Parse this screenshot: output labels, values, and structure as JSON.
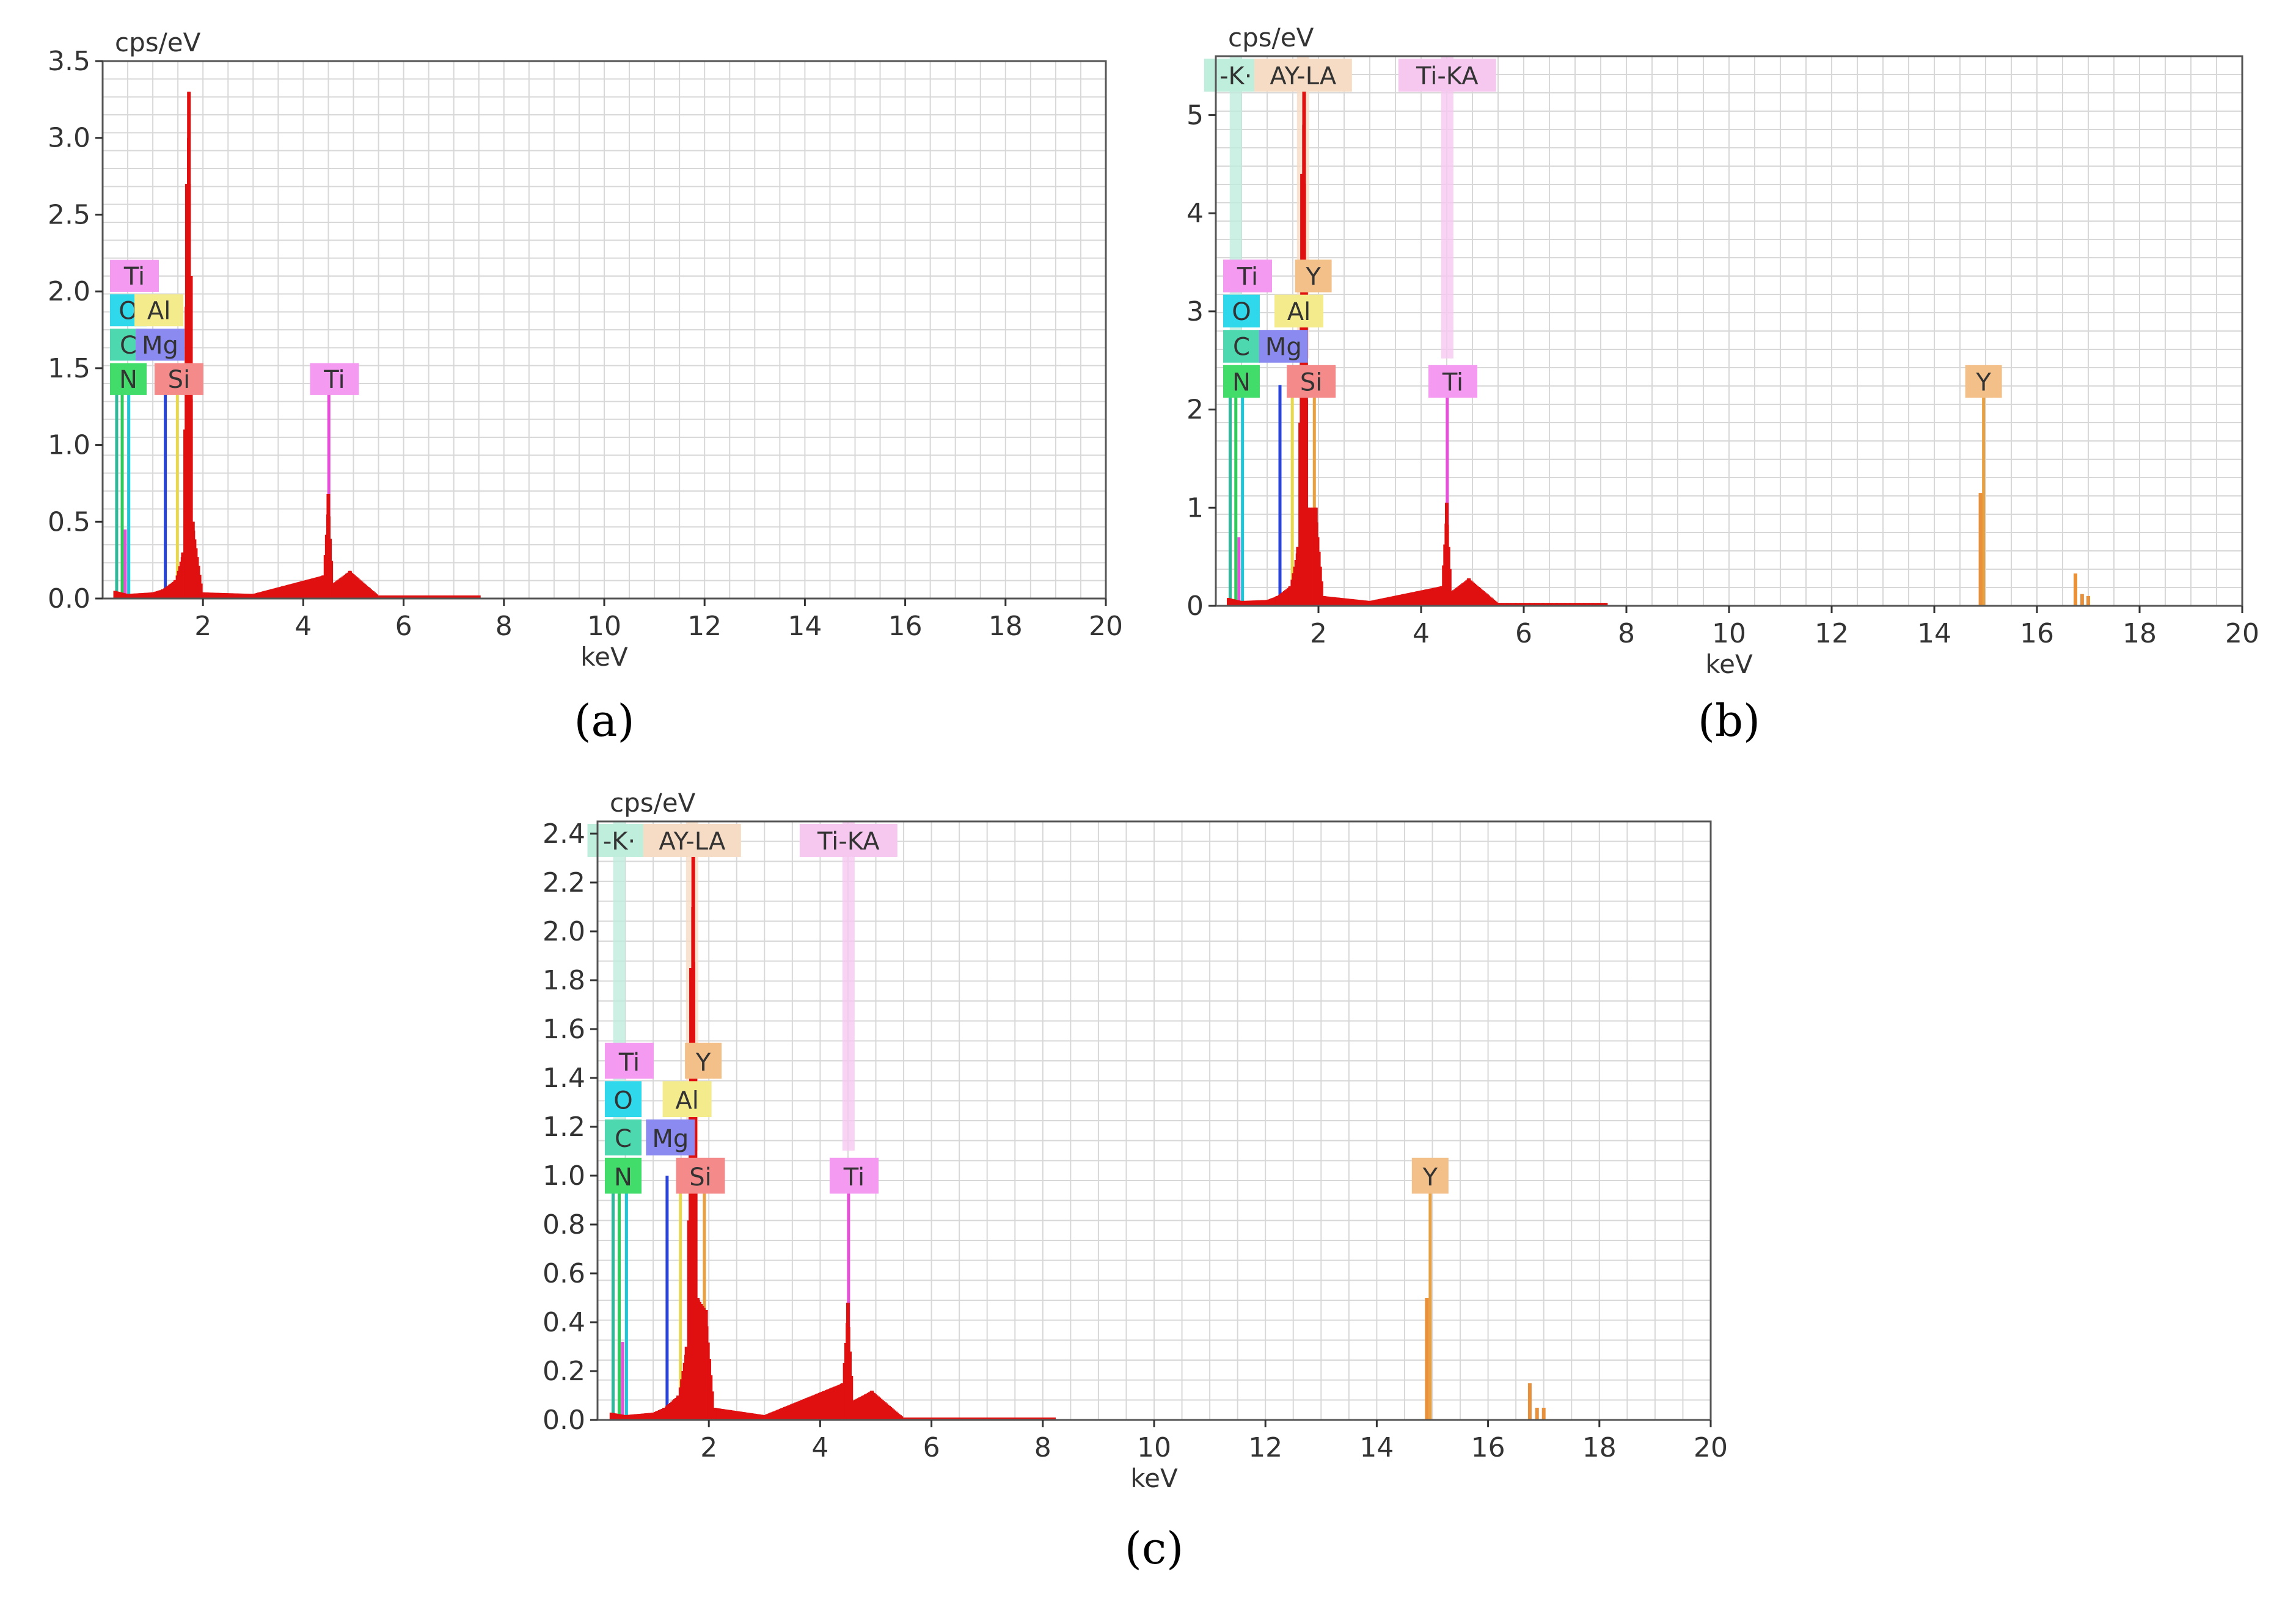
{
  "figure": {
    "panels": [
      "a",
      "b",
      "c"
    ]
  },
  "chart_data": [
    {
      "panel": "a",
      "panel_label": "(a)",
      "type": "bar",
      "title": "",
      "xlabel": "keV",
      "ylabel": "cps/eV",
      "xlim": [
        0,
        20
      ],
      "ylim": [
        0,
        3.5
      ],
      "xticks": [
        2,
        4,
        6,
        8,
        10,
        12,
        14,
        16,
        18,
        20
      ],
      "xtick_labels": [
        "2",
        "4",
        "6",
        "8",
        "10",
        "12",
        "14",
        "16",
        "18",
        "20"
      ],
      "yticks": [
        0,
        0.5,
        1.0,
        1.5,
        2.0,
        2.5,
        3.0,
        3.5
      ],
      "ytick_labels": [
        "0.0",
        "0.5",
        "1.0",
        "1.5",
        "2.0",
        "2.5",
        "3.0",
        "3.5"
      ],
      "element_lines": [
        {
          "element": "N",
          "energy": 0.39,
          "height": 1.42,
          "color": "#2ecc5a"
        },
        {
          "element": "C",
          "energy": 0.28,
          "height": 1.42,
          "color": "#2fb89a"
        },
        {
          "element": "O",
          "energy": 0.52,
          "height": 1.42,
          "color": "#1fc6d8"
        },
        {
          "element": "Ti",
          "energy": 0.45,
          "height": 0.45,
          "color": "#e84fd8"
        },
        {
          "element": "Mg",
          "energy": 1.25,
          "height": 1.42,
          "color": "#2a44d8"
        },
        {
          "element": "Al",
          "energy": 1.49,
          "height": 1.42,
          "color": "#e8d850"
        },
        {
          "element": "Si",
          "energy": 1.74,
          "height": 1.42,
          "color": "#e84040"
        },
        {
          "element": "Ti",
          "energy": 4.51,
          "height": 1.42,
          "color": "#e84fd8"
        }
      ],
      "spectrum": [
        {
          "energy": 0.25,
          "value": 0.05
        },
        {
          "energy": 0.5,
          "value": 0.03
        },
        {
          "energy": 1.0,
          "value": 0.04
        },
        {
          "energy": 1.2,
          "value": 0.06
        },
        {
          "energy": 1.45,
          "value": 0.12
        },
        {
          "energy": 1.6,
          "value": 0.3
        },
        {
          "energy": 1.68,
          "value": 2.7
        },
        {
          "energy": 1.72,
          "value": 3.3
        },
        {
          "energy": 1.76,
          "value": 2.1
        },
        {
          "energy": 1.8,
          "value": 0.5
        },
        {
          "energy": 2.0,
          "value": 0.04
        },
        {
          "energy": 3.0,
          "value": 0.03
        },
        {
          "energy": 4.4,
          "value": 0.15
        },
        {
          "energy": 4.5,
          "value": 0.68
        },
        {
          "energy": 4.6,
          "value": 0.1
        },
        {
          "energy": 4.93,
          "value": 0.18
        },
        {
          "energy": 5.5,
          "value": 0.02
        },
        {
          "energy": 7.5,
          "value": 0.02
        }
      ],
      "label_boxes": [
        {
          "text": "Ti",
          "row": 0,
          "col": 0,
          "color": "#f49af0"
        },
        {
          "text": "O",
          "row": 1,
          "col": 0,
          "color": "#30d8ec"
        },
        {
          "text": "Al",
          "row": 1,
          "col": 1,
          "color": "#f4ec8c"
        },
        {
          "text": "C",
          "row": 2,
          "col": 0,
          "color": "#4ed8b0"
        },
        {
          "text": "Mg",
          "row": 2,
          "col": 0.7,
          "color": "#8a8af0"
        },
        {
          "text": "N",
          "row": 3,
          "col": 0,
          "color": "#42dc6a"
        },
        {
          "text": "Si",
          "row": 3,
          "col": 1.4,
          "color": "#f48a8a"
        },
        {
          "text": "Ti",
          "row": 3,
          "col": 4.5,
          "color": "#f49af0"
        }
      ],
      "top_labels": []
    },
    {
      "panel": "b",
      "panel_label": "(b)",
      "type": "bar",
      "title": "",
      "xlabel": "keV",
      "ylabel": "cps/eV",
      "xlim": [
        0,
        20
      ],
      "ylim": [
        0,
        5.6
      ],
      "xticks": [
        2,
        4,
        6,
        8,
        10,
        12,
        14,
        16,
        18,
        20
      ],
      "xtick_labels": [
        "2",
        "4",
        "6",
        "8",
        "10",
        "12",
        "14",
        "16",
        "18",
        "20"
      ],
      "yticks": [
        0,
        1,
        2,
        3,
        4,
        5
      ],
      "ytick_labels": [
        "0",
        "1",
        "2",
        "3",
        "4",
        "5"
      ],
      "element_lines": [
        {
          "element": "N",
          "energy": 0.39,
          "height": 2.25,
          "color": "#2ecc5a"
        },
        {
          "element": "C",
          "energy": 0.28,
          "height": 2.25,
          "color": "#2fb89a"
        },
        {
          "element": "O",
          "energy": 0.52,
          "height": 2.25,
          "color": "#1fc6d8"
        },
        {
          "element": "Ti",
          "energy": 0.45,
          "height": 0.7,
          "color": "#e84fd8"
        },
        {
          "element": "Mg",
          "energy": 1.25,
          "height": 2.25,
          "color": "#2a44d8"
        },
        {
          "element": "Al",
          "energy": 1.49,
          "height": 2.25,
          "color": "#e8d850"
        },
        {
          "element": "Si",
          "energy": 1.74,
          "height": 2.25,
          "color": "#e84040"
        },
        {
          "element": "Y",
          "energy": 1.92,
          "height": 2.25,
          "color": "#e8a040"
        },
        {
          "element": "Ti",
          "energy": 4.51,
          "height": 2.25,
          "color": "#e84fd8"
        },
        {
          "element": "Y",
          "energy": 14.96,
          "height": 2.25,
          "color": "#e8a040"
        }
      ],
      "spectrum": [
        {
          "energy": 0.25,
          "value": 0.08
        },
        {
          "energy": 0.5,
          "value": 0.05
        },
        {
          "energy": 1.0,
          "value": 0.06
        },
        {
          "energy": 1.2,
          "value": 0.1
        },
        {
          "energy": 1.45,
          "value": 0.2
        },
        {
          "energy": 1.6,
          "value": 0.6
        },
        {
          "energy": 1.68,
          "value": 4.4
        },
        {
          "energy": 1.72,
          "value": 5.4
        },
        {
          "energy": 1.76,
          "value": 3.2
        },
        {
          "energy": 1.8,
          "value": 1.0
        },
        {
          "energy": 1.95,
          "value": 1.0
        },
        {
          "energy": 2.1,
          "value": 0.1
        },
        {
          "energy": 3.0,
          "value": 0.05
        },
        {
          "energy": 4.4,
          "value": 0.2
        },
        {
          "energy": 4.5,
          "value": 1.05
        },
        {
          "energy": 4.6,
          "value": 0.15
        },
        {
          "energy": 4.93,
          "value": 0.28
        },
        {
          "energy": 5.5,
          "value": 0.03
        },
        {
          "energy": 7.6,
          "value": 0.03
        }
      ],
      "extra_orange_lines": [
        {
          "energy": 14.9,
          "value": 1.15
        },
        {
          "energy": 16.75,
          "value": 0.33
        },
        {
          "energy": 16.88,
          "value": 0.12
        },
        {
          "energy": 17.0,
          "value": 0.1
        }
      ],
      "label_boxes": [
        {
          "text": "Ti",
          "row": 0,
          "col": 0,
          "color": "#f49af0"
        },
        {
          "text": "Y",
          "row": 0,
          "col": 1.9,
          "color": "#f4c08a"
        },
        {
          "text": "O",
          "row": 1,
          "col": 0,
          "color": "#30d8ec"
        },
        {
          "text": "Al",
          "row": 1,
          "col": 1.5,
          "color": "#f4ec8c"
        },
        {
          "text": "C",
          "row": 2,
          "col": 0,
          "color": "#4ed8b0"
        },
        {
          "text": "Mg",
          "row": 2,
          "col": 1.2,
          "color": "#8a8af0"
        },
        {
          "text": "N",
          "row": 3,
          "col": 0,
          "color": "#42dc6a"
        },
        {
          "text": "Si",
          "row": 3,
          "col": 1.74,
          "color": "#f48a8a"
        },
        {
          "text": "Ti",
          "row": 3,
          "col": 4.5,
          "color": "#f49af0"
        },
        {
          "text": "Y",
          "row": 3,
          "col": 14.96,
          "color": "#f4c08a"
        }
      ],
      "top_labels": [
        {
          "text": "-K·",
          "energy": 0.39,
          "color": "#bfeedd"
        },
        {
          "text": "AY-LA",
          "energy": 1.7,
          "color": "#f6dcc4"
        },
        {
          "text": "Ti-KA",
          "energy": 4.51,
          "color": "#f6c8f0"
        }
      ]
    },
    {
      "panel": "c",
      "panel_label": "(c)",
      "type": "bar",
      "title": "",
      "xlabel": "keV",
      "ylabel": "cps/eV",
      "xlim": [
        0,
        20
      ],
      "ylim": [
        0,
        2.45
      ],
      "xticks": [
        2,
        4,
        6,
        8,
        10,
        12,
        14,
        16,
        18,
        20
      ],
      "xtick_labels": [
        "2",
        "4",
        "6",
        "8",
        "10",
        "12",
        "14",
        "16",
        "18",
        "20"
      ],
      "yticks": [
        0,
        0.2,
        0.4,
        0.6,
        0.8,
        1.0,
        1.2,
        1.4,
        1.6,
        1.8,
        2.0,
        2.2,
        2.4
      ],
      "ytick_labels": [
        "0.0",
        "0.2",
        "0.4",
        "0.6",
        "0.8",
        "1.0",
        "1.2",
        "1.4",
        "1.6",
        "1.8",
        "2.0",
        "2.2",
        "2.4"
      ],
      "element_lines": [
        {
          "element": "N",
          "energy": 0.39,
          "height": 1.0,
          "color": "#2ecc5a"
        },
        {
          "element": "C",
          "energy": 0.28,
          "height": 1.0,
          "color": "#2fb89a"
        },
        {
          "element": "O",
          "energy": 0.52,
          "height": 1.0,
          "color": "#1fc6d8"
        },
        {
          "element": "Ti",
          "energy": 0.45,
          "height": 0.32,
          "color": "#e84fd8"
        },
        {
          "element": "Mg",
          "energy": 1.25,
          "height": 1.0,
          "color": "#2a44d8"
        },
        {
          "element": "Al",
          "energy": 1.49,
          "height": 1.0,
          "color": "#e8d850"
        },
        {
          "element": "Si",
          "energy": 1.74,
          "height": 1.0,
          "color": "#e84040"
        },
        {
          "element": "Y",
          "energy": 1.92,
          "height": 1.0,
          "color": "#e8a040"
        },
        {
          "element": "Ti",
          "energy": 4.51,
          "height": 1.0,
          "color": "#e84fd8"
        },
        {
          "element": "Y",
          "energy": 14.96,
          "height": 1.0,
          "color": "#e8a040"
        }
      ],
      "spectrum": [
        {
          "energy": 0.25,
          "value": 0.03
        },
        {
          "energy": 0.5,
          "value": 0.02
        },
        {
          "energy": 1.0,
          "value": 0.03
        },
        {
          "energy": 1.2,
          "value": 0.05
        },
        {
          "energy": 1.45,
          "value": 0.1
        },
        {
          "energy": 1.6,
          "value": 0.3
        },
        {
          "energy": 1.68,
          "value": 1.85
        },
        {
          "energy": 1.72,
          "value": 2.35
        },
        {
          "energy": 1.76,
          "value": 1.4
        },
        {
          "energy": 1.8,
          "value": 0.5
        },
        {
          "energy": 1.95,
          "value": 0.45
        },
        {
          "energy": 2.1,
          "value": 0.05
        },
        {
          "energy": 3.0,
          "value": 0.02
        },
        {
          "energy": 4.4,
          "value": 0.15
        },
        {
          "energy": 4.5,
          "value": 0.48
        },
        {
          "energy": 4.6,
          "value": 0.08
        },
        {
          "energy": 4.93,
          "value": 0.12
        },
        {
          "energy": 5.5,
          "value": 0.01
        },
        {
          "energy": 8.2,
          "value": 0.01
        }
      ],
      "extra_orange_lines": [
        {
          "energy": 14.9,
          "value": 0.5
        },
        {
          "energy": 16.75,
          "value": 0.15
        },
        {
          "energy": 16.88,
          "value": 0.05
        },
        {
          "energy": 17.0,
          "value": 0.05
        }
      ],
      "label_boxes": [
        {
          "text": "Ti",
          "row": 0,
          "col": 0,
          "color": "#f49af0"
        },
        {
          "text": "Y",
          "row": 0,
          "col": 1.9,
          "color": "#f4c08a"
        },
        {
          "text": "O",
          "row": 1,
          "col": 0,
          "color": "#30d8ec"
        },
        {
          "text": "Al",
          "row": 1,
          "col": 1.5,
          "color": "#f4ec8c"
        },
        {
          "text": "C",
          "row": 2,
          "col": 0,
          "color": "#4ed8b0"
        },
        {
          "text": "Mg",
          "row": 2,
          "col": 1.2,
          "color": "#8a8af0"
        },
        {
          "text": "N",
          "row": 3,
          "col": 0,
          "color": "#42dc6a"
        },
        {
          "text": "Si",
          "row": 3,
          "col": 1.74,
          "color": "#f48a8a"
        },
        {
          "text": "Ti",
          "row": 3,
          "col": 4.5,
          "color": "#f49af0"
        },
        {
          "text": "Y",
          "row": 3,
          "col": 14.96,
          "color": "#f4c08a"
        }
      ],
      "top_labels": [
        {
          "text": "-K·",
          "energy": 0.39,
          "color": "#bfeedd"
        },
        {
          "text": "AY-LA",
          "energy": 1.7,
          "color": "#f6dcc4"
        },
        {
          "text": "Ti-KA",
          "energy": 4.51,
          "color": "#f6c8f0"
        }
      ]
    }
  ]
}
